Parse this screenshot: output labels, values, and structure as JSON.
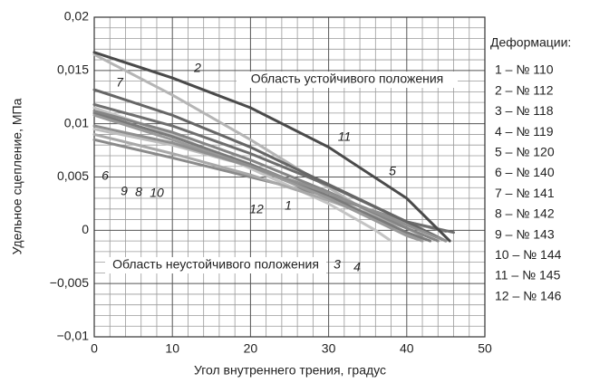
{
  "chart_data": {
    "type": "line",
    "x_label": "Угол внутреннего трения, градус",
    "y_label": "Удельное сцепление, МПа",
    "legend_title": "Деформации:",
    "annotations": [
      "Область устойчивого положения",
      "Область неустойчивого положения"
    ],
    "xlim": [
      0,
      50
    ],
    "xticks": [
      0,
      10,
      20,
      30,
      40,
      50
    ],
    "ylim": [
      -0.01,
      0.02
    ],
    "yticks": [
      {
        "value": -0.01,
        "label": "−0,01"
      },
      {
        "value": -0.005,
        "label": "−0,005"
      },
      0,
      {
        "value": 0.005,
        "label": "0,005"
      },
      {
        "value": 0.01,
        "label": "0,01"
      },
      {
        "value": 0.015,
        "label": "0,015"
      },
      {
        "value": 0.02,
        "label": "0,02"
      }
    ],
    "grid": true,
    "series": [
      {
        "name": "1 – № 110",
        "tag": "1",
        "color": "#8a8a8a",
        "x": [
          0,
          10,
          20,
          30,
          40,
          45
        ],
        "values": [
          0.0085,
          0.0068,
          0.005,
          0.0032,
          0.0008,
          -0.0001
        ]
      },
      {
        "name": "2 – № 112",
        "tag": "2",
        "color": "#b5b5b5",
        "x": [
          0,
          10,
          20,
          30,
          40,
          42
        ],
        "values": [
          0.0165,
          0.0127,
          0.0085,
          0.004,
          -0.0005,
          -0.001
        ]
      },
      {
        "name": "3 – № 118",
        "tag": "3",
        "color": "#c4c4c4",
        "x": [
          0,
          10,
          20,
          30,
          36,
          38
        ],
        "values": [
          0.0115,
          0.009,
          0.0058,
          0.0025,
          0,
          -0.001
        ]
      },
      {
        "name": "4 – № 119",
        "tag": "4",
        "color": "#bdbdbd",
        "x": [
          0,
          10,
          20,
          30,
          40,
          43
        ],
        "values": [
          0.0095,
          0.008,
          0.006,
          0.0035,
          0.0005,
          0.0003
        ]
      },
      {
        "name": "5 – № 120",
        "tag": "5",
        "color": "#6e6e6e",
        "x": [
          0,
          10,
          20,
          30,
          40,
          46
        ],
        "values": [
          0.0118,
          0.0098,
          0.0072,
          0.0042,
          0.0008,
          -0.0002
        ]
      },
      {
        "name": "6 – № 140",
        "tag": "6",
        "color": "#a8a8a8",
        "x": [
          0,
          10,
          20,
          30,
          40,
          42
        ],
        "values": [
          0.009,
          0.0072,
          0.0052,
          0.0028,
          0.0002,
          -0.0005
        ]
      },
      {
        "name": "7 – № 141",
        "tag": "7",
        "color": "#666666",
        "x": [
          0,
          10,
          20,
          30,
          40,
          45
        ],
        "values": [
          0.0132,
          0.0108,
          0.0078,
          0.0043,
          0.0008,
          -0.001
        ]
      },
      {
        "name": "8 – № 142",
        "tag": "8",
        "color": "#7a7a7a",
        "x": [
          0,
          10,
          20,
          30,
          40,
          43
        ],
        "values": [
          0.011,
          0.0088,
          0.0062,
          0.0032,
          -0.0002,
          -0.001
        ]
      },
      {
        "name": "9 – № 143",
        "tag": "9",
        "color": "#858585",
        "x": [
          0,
          10,
          20,
          30,
          40,
          44
        ],
        "values": [
          0.0112,
          0.0092,
          0.0066,
          0.0036,
          0.0002,
          -0.001
        ]
      },
      {
        "name": "10 – № 144",
        "tag": "10",
        "color": "#9a9a9a",
        "x": [
          0,
          10,
          20,
          30,
          40,
          42
        ],
        "values": [
          0.0108,
          0.0085,
          0.006,
          0.003,
          -0.0005,
          -0.001
        ]
      },
      {
        "name": "11 – № 145",
        "tag": "11",
        "color": "#4a4a4a",
        "x": [
          0,
          10,
          20,
          30,
          40,
          45.5
        ],
        "values": [
          0.0167,
          0.0143,
          0.0115,
          0.0078,
          0.003,
          -0.001
        ]
      },
      {
        "name": "12 – № 146",
        "tag": "12",
        "color": "#909090",
        "x": [
          0,
          10,
          20,
          30,
          40,
          45
        ],
        "values": [
          0.0098,
          0.0082,
          0.006,
          0.0035,
          0.0005,
          -0.001
        ]
      }
    ]
  }
}
